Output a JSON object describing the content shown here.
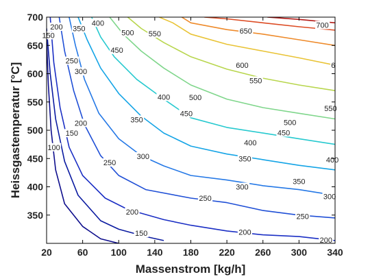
{
  "chart_data": {
    "type": "contour",
    "xlabel": "Massenstrom [kg/h]",
    "ylabel": "Heissgastemperatur [°C]",
    "xlim": [
      20,
      340
    ],
    "ylim": [
      300,
      700
    ],
    "x_ticks": [
      20,
      60,
      100,
      140,
      180,
      220,
      260,
      300,
      340
    ],
    "y_ticks": [
      350,
      400,
      450,
      500,
      550,
      600,
      650,
      700
    ],
    "grid": false,
    "colormap": "jet",
    "contours": [
      {
        "level": 100,
        "color": "#0d0d8c",
        "points": [
          [
            20,
            660
          ],
          [
            22,
            580
          ],
          [
            25,
            500
          ],
          [
            30,
            430
          ],
          [
            40,
            370
          ],
          [
            60,
            330
          ],
          [
            80,
            308
          ],
          [
            100,
            300
          ]
        ]
      },
      {
        "level": 150,
        "color": "#0a1aa0",
        "points": [
          [
            20,
            680
          ],
          [
            24,
            600
          ],
          [
            30,
            520
          ],
          [
            40,
            445
          ],
          [
            55,
            385
          ],
          [
            80,
            340
          ],
          [
            100,
            325
          ],
          [
            130,
            312
          ],
          [
            150,
            305
          ]
        ]
      },
      {
        "level": 200,
        "color": "#1a2ec4",
        "points": [
          [
            24,
            700
          ],
          [
            28,
            620
          ],
          [
            35,
            540
          ],
          [
            45,
            470
          ],
          [
            60,
            420
          ],
          [
            85,
            380
          ],
          [
            110,
            360
          ],
          [
            150,
            342
          ],
          [
            180,
            332
          ],
          [
            220,
            322
          ],
          [
            260,
            315
          ],
          [
            300,
            312
          ],
          [
            340,
            305
          ]
        ]
      },
      {
        "level": 250,
        "color": "#1f4fd6",
        "points": [
          [
            34,
            700
          ],
          [
            40,
            640
          ],
          [
            50,
            570
          ],
          [
            62,
            510
          ],
          [
            80,
            455
          ],
          [
            100,
            420
          ],
          [
            130,
            395
          ],
          [
            180,
            380
          ],
          [
            220,
            372
          ],
          [
            260,
            358
          ],
          [
            300,
            350
          ],
          [
            340,
            345
          ]
        ]
      },
      {
        "level": 300,
        "color": "#2478e6",
        "points": [
          [
            45,
            700
          ],
          [
            52,
            650
          ],
          [
            62,
            590
          ],
          [
            78,
            530
          ],
          [
            100,
            485
          ],
          [
            125,
            455
          ],
          [
            150,
            437
          ],
          [
            180,
            420
          ],
          [
            220,
            412
          ],
          [
            260,
            402
          ],
          [
            300,
            395
          ],
          [
            340,
            385
          ]
        ]
      },
      {
        "level": 350,
        "color": "#14a4e6",
        "points": [
          [
            55,
            700
          ],
          [
            65,
            660
          ],
          [
            80,
            610
          ],
          [
            100,
            565
          ],
          [
            125,
            525
          ],
          [
            150,
            495
          ],
          [
            180,
            472
          ],
          [
            220,
            458
          ],
          [
            260,
            448
          ],
          [
            300,
            438
          ],
          [
            340,
            430
          ]
        ]
      },
      {
        "level": 400,
        "color": "#26c9cf",
        "points": [
          [
            70,
            700
          ],
          [
            80,
            665
          ],
          [
            95,
            630
          ],
          [
            120,
            590
          ],
          [
            150,
            555
          ],
          [
            180,
            522
          ],
          [
            220,
            505
          ],
          [
            260,
            495
          ],
          [
            300,
            485
          ],
          [
            340,
            475
          ]
        ]
      },
      {
        "level": 450,
        "color": "#7fd68b",
        "points": [
          [
            90,
            700
          ],
          [
            105,
            670
          ],
          [
            125,
            640
          ],
          [
            150,
            610
          ],
          [
            180,
            580
          ],
          [
            220,
            555
          ],
          [
            260,
            540
          ],
          [
            300,
            530
          ],
          [
            340,
            520
          ]
        ]
      },
      {
        "level": 500,
        "color": "#b8d64d",
        "points": [
          [
            110,
            700
          ],
          [
            125,
            680
          ],
          [
            150,
            655
          ],
          [
            180,
            630
          ],
          [
            220,
            608
          ],
          [
            260,
            592
          ],
          [
            300,
            580
          ],
          [
            340,
            570
          ]
        ]
      },
      {
        "level": 550,
        "color": "#e9c335",
        "points": [
          [
            145,
            700
          ],
          [
            160,
            690
          ],
          [
            180,
            670
          ],
          [
            220,
            652
          ],
          [
            260,
            640
          ],
          [
            300,
            628
          ],
          [
            340,
            615
          ]
        ]
      },
      {
        "level": 600,
        "color": "#ee8a2a",
        "points": [
          [
            170,
            700
          ],
          [
            180,
            690
          ],
          [
            220,
            678
          ],
          [
            260,
            670
          ],
          [
            300,
            660
          ],
          [
            340,
            650
          ]
        ]
      },
      {
        "level": 650,
        "color": "#dc4a22",
        "points": [
          [
            195,
            700
          ],
          [
            220,
            697
          ],
          [
            260,
            690
          ],
          [
            300,
            683
          ],
          [
            340,
            677
          ]
        ]
      },
      {
        "level": 700,
        "color": "#b31a16",
        "points": [
          [
            265,
            700
          ],
          [
            300,
            696
          ],
          [
            340,
            690
          ]
        ]
      }
    ],
    "contour_labels": [
      {
        "text": "100",
        "x": 28,
        "y": 470
      },
      {
        "text": "150",
        "x": 22,
        "y": 668
      },
      {
        "text": "150",
        "x": 48,
        "y": 495
      },
      {
        "text": "150",
        "x": 125,
        "y": 318
      },
      {
        "text": "200",
        "x": 31,
        "y": 683
      },
      {
        "text": "200",
        "x": 58,
        "y": 513
      },
      {
        "text": "200",
        "x": 115,
        "y": 356
      },
      {
        "text": "200",
        "x": 240,
        "y": 320
      },
      {
        "text": "200",
        "x": 330,
        "y": 306
      },
      {
        "text": "250",
        "x": 48,
        "y": 623
      },
      {
        "text": "250",
        "x": 90,
        "y": 443
      },
      {
        "text": "250",
        "x": 196,
        "y": 380
      },
      {
        "text": "250",
        "x": 304,
        "y": 348
      },
      {
        "text": "300",
        "x": 58,
        "y": 604
      },
      {
        "text": "300",
        "x": 127,
        "y": 454
      },
      {
        "text": "300",
        "x": 237,
        "y": 400
      },
      {
        "text": "300",
        "x": 334,
        "y": 383
      },
      {
        "text": "350",
        "x": 56,
        "y": 680
      },
      {
        "text": "350",
        "x": 120,
        "y": 519
      },
      {
        "text": "350",
        "x": 240,
        "y": 450
      },
      {
        "text": "350",
        "x": 300,
        "y": 410
      },
      {
        "text": "400",
        "x": 77,
        "y": 690
      },
      {
        "text": "400",
        "x": 150,
        "y": 559
      },
      {
        "text": "400",
        "x": 246,
        "y": 478
      },
      {
        "text": "400",
        "x": 337,
        "y": 448
      },
      {
        "text": "450",
        "x": 98,
        "y": 642
      },
      {
        "text": "450",
        "x": 175,
        "y": 530
      },
      {
        "text": "450",
        "x": 283,
        "y": 496
      },
      {
        "text": "500",
        "x": 110,
        "y": 673
      },
      {
        "text": "500",
        "x": 185,
        "y": 558
      },
      {
        "text": "500",
        "x": 290,
        "y": 514
      },
      {
        "text": "550",
        "x": 140,
        "y": 671
      },
      {
        "text": "550",
        "x": 252,
        "y": 588
      },
      {
        "text": "550",
        "x": 335,
        "y": 539
      },
      {
        "text": "600",
        "x": 237,
        "y": 615
      },
      {
        "text": "650",
        "x": 241,
        "y": 676
      },
      {
        "text": "700",
        "x": 326,
        "y": 686
      },
      {
        "text": "6",
        "x": 338,
        "y": 615
      }
    ]
  }
}
